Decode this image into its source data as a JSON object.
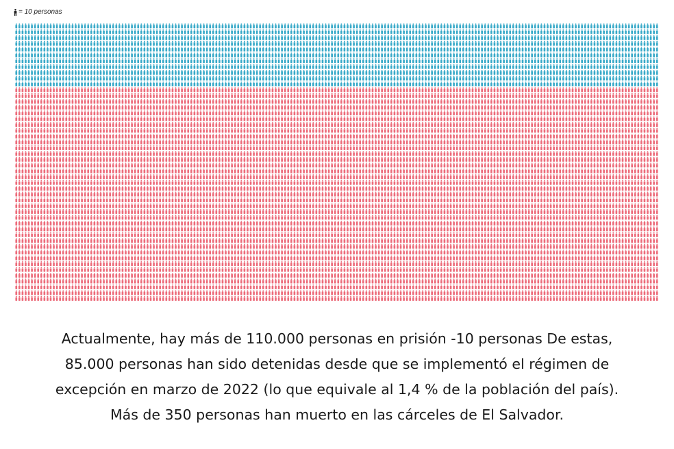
{
  "legend": {
    "icon": "person-icon",
    "label": "= 10 personas"
  },
  "colors": {
    "detained": "#38a9c8",
    "other": "#ec6b7a",
    "legend_icon": "#222222"
  },
  "chart_data": {
    "type": "pictogram",
    "unit_value": 10,
    "unit_label": "= 10 personas",
    "title": "",
    "series": [
      {
        "color": "#38a9c8",
        "rows": 11
      },
      {
        "color": "#ec6b7a",
        "rows": 37
      }
    ],
    "columns": 206,
    "total_rows": 48
  },
  "caption": {
    "lines": [
      "Actualmente, hay más de 110.000 personas en prisión -10 personas De estas,",
      "85.000 personas han sido detenidas desde que se implementó el régimen de",
      "excepción en marzo de 2022 (lo que equivale al 1,4 % de la población del país).",
      "Más de 350 personas han muerto en las cárceles de El Salvador."
    ]
  }
}
